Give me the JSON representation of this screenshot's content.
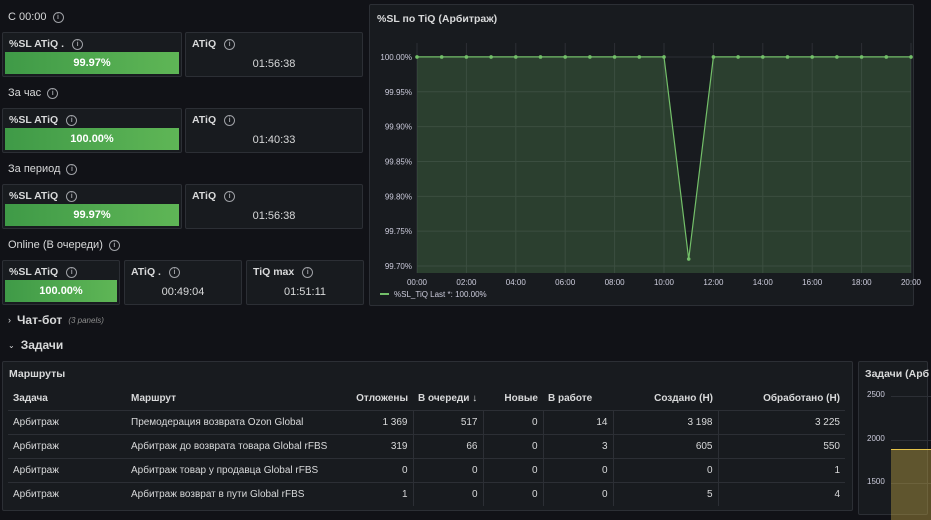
{
  "colors": {
    "background": "#111217",
    "panel": "#181b1f",
    "border": "#2c2f35",
    "green": "#5fb656",
    "line": "#73bf69",
    "yellow": "#e5c34a"
  },
  "sections": [
    {
      "title": "С 00:00",
      "panels": [
        {
          "title": "%SL ATiQ .",
          "value": "99.97%"
        },
        {
          "title": "ATiQ",
          "value": "01:56:38"
        }
      ]
    },
    {
      "title": "За час",
      "panels": [
        {
          "title": "%SL ATiQ",
          "value": "100.00%"
        },
        {
          "title": "ATiQ",
          "value": "01:40:33"
        }
      ]
    },
    {
      "title": "За период",
      "panels": [
        {
          "title": "%SL ATiQ",
          "value": "99.97%"
        },
        {
          "title": "ATiQ",
          "value": "01:56:38"
        }
      ]
    }
  ],
  "online": {
    "title": "Online (В очереди)",
    "panels": [
      {
        "title": "%SL ATiQ",
        "value": "100.00%"
      },
      {
        "title": "ATiQ .",
        "value": "00:49:04"
      },
      {
        "title": "TiQ max",
        "value": "01:51:11"
      }
    ]
  },
  "chart_panel": {
    "title": "%SL по TiQ (Арбитраж)"
  },
  "chart_data": {
    "type": "line",
    "title": "%SL по TiQ (Арбитраж)",
    "x": [
      "00:00",
      "01:00",
      "02:00",
      "03:00",
      "04:00",
      "05:00",
      "06:00",
      "07:00",
      "08:00",
      "09:00",
      "10:00",
      "11:00",
      "12:00",
      "13:00",
      "14:00",
      "15:00",
      "16:00",
      "17:00",
      "18:00",
      "19:00",
      "20:00"
    ],
    "x_ticks": [
      "00:00",
      "02:00",
      "04:00",
      "06:00",
      "08:00",
      "10:00",
      "12:00",
      "14:00",
      "16:00",
      "18:00",
      "20:00"
    ],
    "y_ticks": [
      "100.00%",
      "99.95%",
      "99.90%",
      "99.85%",
      "99.80%",
      "99.75%",
      "99.70%"
    ],
    "ylim": [
      99.69,
      100.02
    ],
    "series": [
      {
        "name": "%SL_TiQ",
        "values": [
          100,
          100,
          100,
          100,
          100,
          100,
          100,
          100,
          100,
          100,
          100,
          99.71,
          100,
          100,
          100,
          100,
          100,
          100,
          100,
          100,
          100
        ]
      }
    ],
    "legend": {
      "label": "%SL_TiQ",
      "last_text": "Last *: 100.00%"
    }
  },
  "collapsed_row": {
    "title": "Чат-бот",
    "subtitle": "(3 panels)"
  },
  "tasks_row": {
    "title": "Задачи"
  },
  "routes": {
    "title": "Маршруты",
    "columns": [
      "Задача",
      "Маршрут",
      "Отложены",
      "В очереди",
      "Новые",
      "В работе",
      "Создано (Н)",
      "Обработано (Н)"
    ],
    "sort_icon": "↓",
    "rows": [
      [
        "Арбитраж",
        "Премодерация возврата Ozon Global",
        "1 369",
        "517",
        "0",
        "14",
        "3 198",
        "3 225"
      ],
      [
        "Арбитраж",
        "Арбитраж до возврата товара Global rFBS",
        "319",
        "66",
        "0",
        "3",
        "605",
        "550"
      ],
      [
        "Арбитраж",
        "Арбитраж товар у продавца Global rFBS",
        "0",
        "0",
        "0",
        "0",
        "0",
        "1"
      ],
      [
        "Арбитраж",
        "Арбитраж возврат в пути Global rFBS",
        "1",
        "0",
        "0",
        "0",
        "5",
        "4"
      ]
    ]
  },
  "side_panel": {
    "title": "Задачи (Арб",
    "y_ticks": [
      "2500",
      "2000",
      "1500"
    ]
  }
}
